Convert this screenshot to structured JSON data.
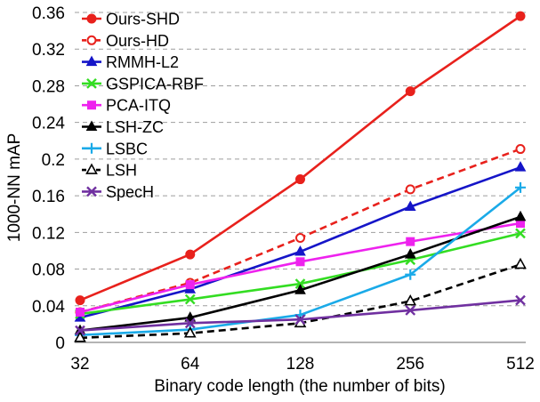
{
  "chart_data": {
    "type": "line",
    "title": "",
    "xlabel": "Binary code length (the number of bits)",
    "ylabel": "1000-NN mAP",
    "categories": [
      "32",
      "64",
      "128",
      "256",
      "512"
    ],
    "ylim": [
      0,
      0.36
    ],
    "yticks": [
      "0",
      "0.04",
      "0.08",
      "0.12",
      "0.16",
      "0.2",
      "0.24",
      "0.28",
      "0.32",
      "0.36"
    ],
    "ytick_values": [
      0,
      0.04,
      0.08,
      0.12,
      0.16,
      0.2,
      0.24,
      0.28,
      0.32,
      0.36
    ],
    "grid": "horizontal-dashed",
    "legend_position": "top-left",
    "series": [
      {
        "name": "Ours-SHD",
        "values": [
          0.046,
          0.096,
          0.178,
          0.274,
          0.356
        ],
        "color": "#e8211c",
        "marker": "filled-circle",
        "dashed": false
      },
      {
        "name": "Ours-HD",
        "values": [
          0.033,
          0.065,
          0.114,
          0.167,
          0.211
        ],
        "color": "#e8211c",
        "marker": "open-circle",
        "dashed": true
      },
      {
        "name": "RMMH-L2",
        "values": [
          0.027,
          0.058,
          0.099,
          0.148,
          0.191
        ],
        "color": "#1515c8",
        "marker": "filled-triangle",
        "dashed": false
      },
      {
        "name": "GSPICA-RBF",
        "values": [
          0.031,
          0.047,
          0.064,
          0.09,
          0.119
        ],
        "color": "#33dd22",
        "marker": "x",
        "dashed": false
      },
      {
        "name": "PCA-ITQ",
        "values": [
          0.033,
          0.063,
          0.088,
          0.11,
          0.13
        ],
        "color": "#ee22ee",
        "marker": "filled-square",
        "dashed": false
      },
      {
        "name": "LSH-ZC",
        "values": [
          0.013,
          0.027,
          0.057,
          0.096,
          0.137
        ],
        "color": "#000000",
        "marker": "filled-triangle",
        "dashed": false
      },
      {
        "name": "LSBC",
        "values": [
          0.008,
          0.014,
          0.03,
          0.074,
          0.169
        ],
        "color": "#1aaae8",
        "marker": "plus",
        "dashed": false
      },
      {
        "name": "LSH",
        "values": [
          0.005,
          0.01,
          0.021,
          0.045,
          0.085
        ],
        "color": "#000000",
        "marker": "open-triangle",
        "dashed": true
      },
      {
        "name": "SpecH",
        "values": [
          0.013,
          0.021,
          0.025,
          0.035,
          0.046
        ],
        "color": "#7030a0",
        "marker": "x",
        "dashed": false
      }
    ]
  }
}
